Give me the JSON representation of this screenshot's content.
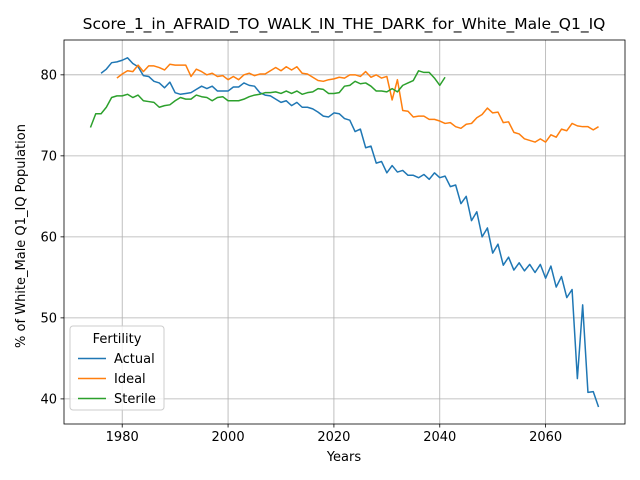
{
  "chart_data": {
    "type": "line",
    "title": "Score_1_in_AFRAID_TO_WALK_IN_THE_DARK_for_White_Male_Q1_IQ",
    "xlabel": "Years",
    "ylabel": "% of White_Male Q1_IQ Population",
    "xlim": [
      1969,
      2075
    ],
    "ylim": [
      36.9,
      84.3
    ],
    "xticks": [
      1980,
      2000,
      2020,
      2040,
      2060
    ],
    "yticks": [
      40,
      50,
      60,
      70,
      80
    ],
    "grid": true,
    "legend": {
      "title": "Fertility",
      "placement": "lower-left"
    },
    "series": [
      {
        "name": "Actual",
        "color": "#1f77b4",
        "x": [
          1976,
          1977,
          1978,
          1979,
          1980,
          1981,
          1982,
          1983,
          1984,
          1985,
          1986,
          1987,
          1988,
          1989,
          1990,
          1991,
          1992,
          1993,
          1994,
          1995,
          1996,
          1997,
          1998,
          1999,
          2000,
          2001,
          2002,
          2003,
          2004,
          2005,
          2006,
          2007,
          2008,
          2009,
          2010,
          2011,
          2012,
          2013,
          2014,
          2015,
          2016,
          2017,
          2018,
          2019,
          2020,
          2021,
          2022,
          2023,
          2024,
          2025,
          2026,
          2027,
          2028,
          2029,
          2030,
          2031,
          2032,
          2033,
          2034,
          2035,
          2036,
          2037,
          2038,
          2039,
          2040,
          2041,
          2042,
          2043,
          2044,
          2045,
          2046,
          2047,
          2048,
          2049,
          2050,
          2051,
          2052,
          2053,
          2054,
          2055,
          2056,
          2057,
          2058,
          2059,
          2060,
          2061,
          2062,
          2063,
          2064,
          2065,
          2066,
          2067,
          2068,
          2069,
          2070
        ],
        "y": [
          80.2,
          80.7,
          81.5,
          81.6,
          81.8,
          82.1,
          81.4,
          81.0,
          79.9,
          79.8,
          79.2,
          79.0,
          78.4,
          79.1,
          77.8,
          77.6,
          77.7,
          77.8,
          78.2,
          78.6,
          78.3,
          78.6,
          78.0,
          78.0,
          78.0,
          78.5,
          78.5,
          79.0,
          78.7,
          78.6,
          77.8,
          77.5,
          77.4,
          77.0,
          76.6,
          76.8,
          76.2,
          76.6,
          76.0,
          76.0,
          75.8,
          75.4,
          74.9,
          74.8,
          75.3,
          75.2,
          74.6,
          74.4,
          73.0,
          73.3,
          71.0,
          71.2,
          69.1,
          69.3,
          67.9,
          68.8,
          68.0,
          68.2,
          67.6,
          67.6,
          67.3,
          67.7,
          67.1,
          67.9,
          67.3,
          67.5,
          66.2,
          66.4,
          64.1,
          65.0,
          62.0,
          63.1,
          60.0,
          61.1,
          58.0,
          59.1,
          56.5,
          57.5,
          55.9,
          56.8,
          55.8,
          56.6,
          55.6,
          56.6,
          54.9,
          56.4,
          53.8,
          55.1,
          52.5,
          53.5,
          42.5,
          51.6,
          40.8,
          40.9,
          39.0
        ]
      },
      {
        "name": "Ideal",
        "color": "#ff7f0e",
        "x": [
          1979,
          1980,
          1981,
          1982,
          1983,
          1984,
          1985,
          1986,
          1987,
          1988,
          1989,
          1990,
          1991,
          1992,
          1993,
          1994,
          1995,
          1996,
          1997,
          1998,
          1999,
          2000,
          2001,
          2002,
          2003,
          2004,
          2005,
          2006,
          2007,
          2008,
          2009,
          2010,
          2011,
          2012,
          2013,
          2014,
          2015,
          2016,
          2017,
          2018,
          2019,
          2020,
          2021,
          2022,
          2023,
          2024,
          2025,
          2026,
          2027,
          2028,
          2029,
          2030,
          2031,
          2032,
          2033,
          2034,
          2035,
          2036,
          2037,
          2038,
          2039,
          2040,
          2041,
          2042,
          2043,
          2044,
          2045,
          2046,
          2047,
          2048,
          2049,
          2050,
          2051,
          2052,
          2053,
          2054,
          2055,
          2056,
          2057,
          2058,
          2059,
          2060,
          2061,
          2062,
          2063,
          2064,
          2065,
          2066,
          2067,
          2068,
          2069,
          2070
        ],
        "y": [
          79.6,
          80.1,
          80.5,
          80.4,
          81.2,
          80.4,
          81.1,
          81.1,
          80.9,
          80.6,
          81.3,
          81.2,
          81.2,
          81.2,
          79.8,
          80.7,
          80.4,
          80.0,
          80.2,
          79.8,
          79.9,
          79.4,
          79.8,
          79.4,
          80.0,
          80.2,
          79.9,
          80.1,
          80.1,
          80.5,
          80.9,
          80.5,
          81.0,
          80.6,
          81.0,
          80.2,
          80.1,
          79.7,
          79.3,
          79.2,
          79.4,
          79.5,
          79.7,
          79.6,
          80.0,
          80.0,
          79.8,
          80.4,
          79.7,
          80.0,
          79.6,
          79.8,
          76.9,
          79.4,
          75.6,
          75.5,
          74.8,
          74.9,
          74.9,
          74.5,
          74.5,
          74.3,
          74.0,
          74.1,
          73.6,
          73.4,
          73.9,
          74.0,
          74.7,
          75.1,
          75.9,
          75.3,
          75.4,
          74.1,
          74.2,
          72.9,
          72.7,
          72.1,
          71.9,
          71.7,
          72.1,
          71.7,
          72.6,
          72.3,
          73.3,
          73.1,
          74.0,
          73.7,
          73.6,
          73.6,
          73.2,
          73.6
        ]
      },
      {
        "name": "Sterile",
        "color": "#2ca02c",
        "x": [
          1974,
          1975,
          1976,
          1977,
          1978,
          1979,
          1980,
          1981,
          1982,
          1983,
          1984,
          1985,
          1986,
          1987,
          1988,
          1989,
          1990,
          1991,
          1992,
          1993,
          1994,
          1995,
          1996,
          1997,
          1998,
          1999,
          2000,
          2001,
          2002,
          2003,
          2004,
          2005,
          2006,
          2007,
          2008,
          2009,
          2010,
          2011,
          2012,
          2013,
          2014,
          2015,
          2016,
          2017,
          2018,
          2019,
          2020,
          2021,
          2022,
          2023,
          2024,
          2025,
          2026,
          2027,
          2028,
          2029,
          2030,
          2031,
          2032,
          2033,
          2034,
          2035,
          2036,
          2037,
          2038,
          2039,
          2040,
          2041
        ],
        "y": [
          73.5,
          75.2,
          75.2,
          76.0,
          77.2,
          77.4,
          77.4,
          77.6,
          77.2,
          77.5,
          76.8,
          76.7,
          76.6,
          76.0,
          76.2,
          76.3,
          76.8,
          77.2,
          77.0,
          77.0,
          77.5,
          77.3,
          77.2,
          76.8,
          77.2,
          77.3,
          76.8,
          76.8,
          76.8,
          77.0,
          77.3,
          77.5,
          77.6,
          77.8,
          77.8,
          77.9,
          77.7,
          78.0,
          77.7,
          78.0,
          77.6,
          77.8,
          77.9,
          78.3,
          78.2,
          77.7,
          77.7,
          77.8,
          78.6,
          78.7,
          79.2,
          78.9,
          79.0,
          78.6,
          78.0,
          78.0,
          77.9,
          78.3,
          77.9,
          78.7,
          79.0,
          79.3,
          80.5,
          80.3,
          80.3,
          79.6,
          78.7,
          79.7
        ]
      }
    ]
  }
}
